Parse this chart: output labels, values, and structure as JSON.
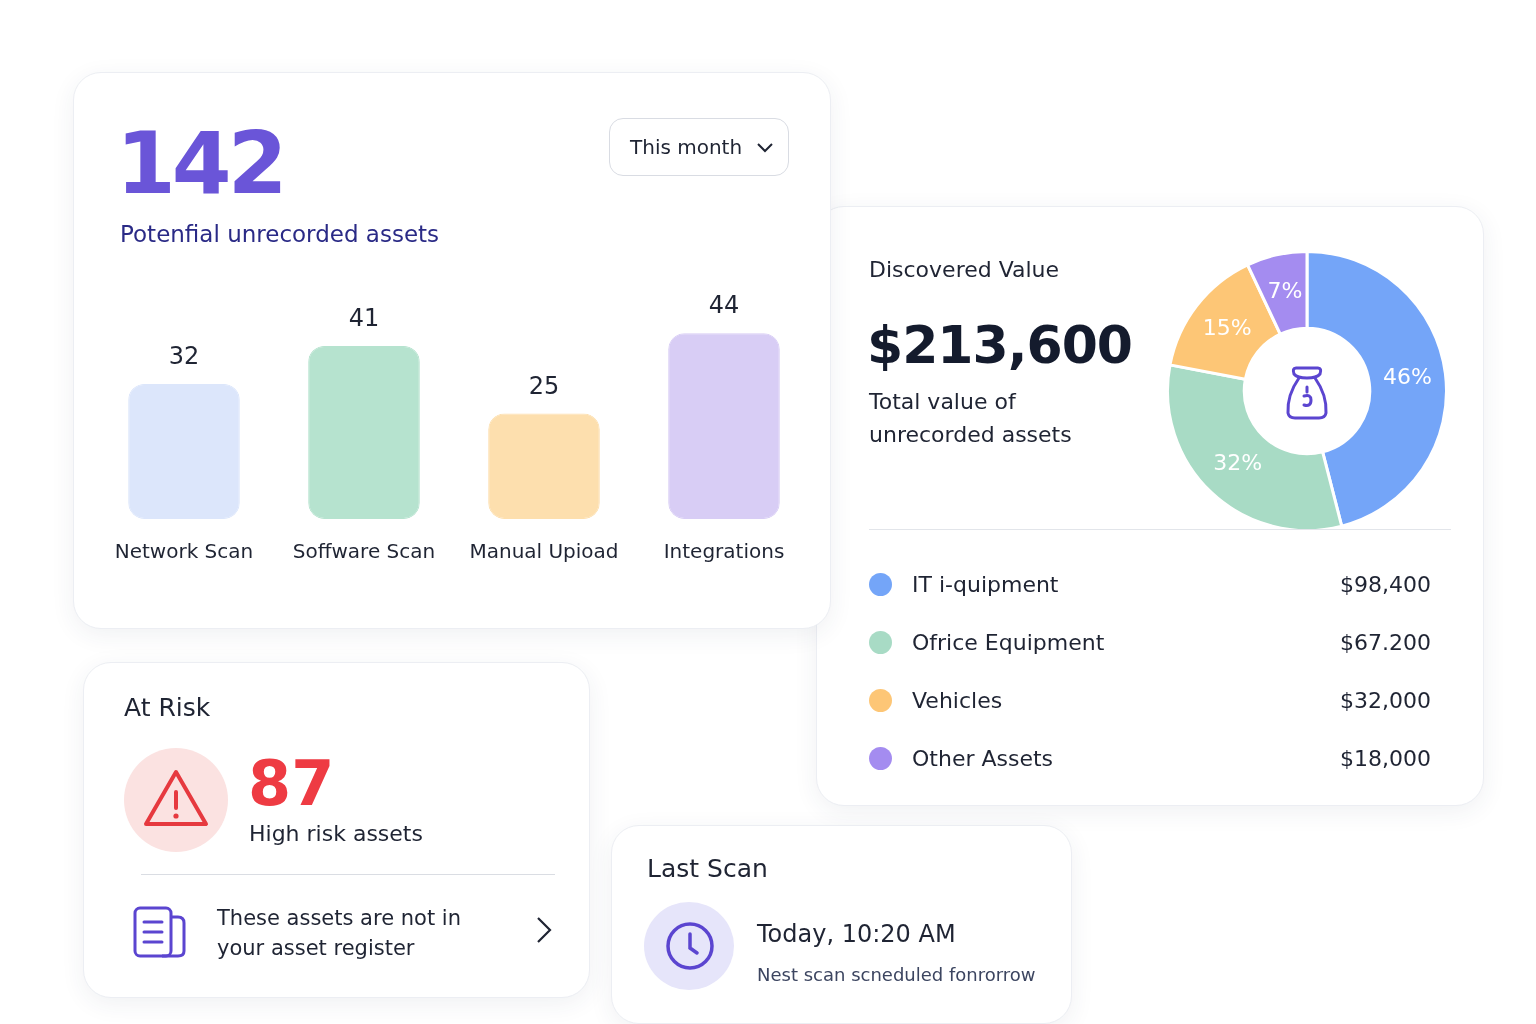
{
  "chart_data": [
    {
      "type": "bar",
      "title": "142",
      "subtitle": "Potenfial unrecorded assets",
      "annotations": [
        "This month"
      ],
      "categories": [
        "Network Scan",
        "Soffware Scan",
        "Manual Upioad",
        "Integrations"
      ],
      "values": [
        32,
        41,
        25,
        44
      ],
      "colors": [
        "#dce6fb",
        "#b6e3cf",
        "#fddfae",
        "#d8cdf5"
      ],
      "data_labels": true
    },
    {
      "type": "donut",
      "title": "Discovered Value",
      "subtitle": "$213,600",
      "annotations": [
        "Total value of unrecorded assets",
        "$98,400",
        "$67.200",
        "$32,000",
        "$18,000"
      ],
      "categories": [
        "IT i-quipment",
        "Ofrice Equipment",
        "Vehicles",
        "Other Assets"
      ],
      "values": [
        46,
        32,
        15,
        7
      ],
      "value_labels": [
        "46%",
        "32%",
        "15%",
        "7%"
      ],
      "colors": [
        "#74a5f8",
        "#a8dbc5",
        "#fdc676",
        "#a48cf0"
      ],
      "legend": "bottom"
    },
    {
      "type": "other",
      "title": "At Risk",
      "annotations": [
        "87",
        "High risk assets",
        "These assets are not in your asset register"
      ]
    },
    {
      "type": "other",
      "title": "Last Scan",
      "annotations": [
        "Today, 10:20 AM",
        "Nest scan scneduled fonrorrow"
      ]
    }
  ]
}
